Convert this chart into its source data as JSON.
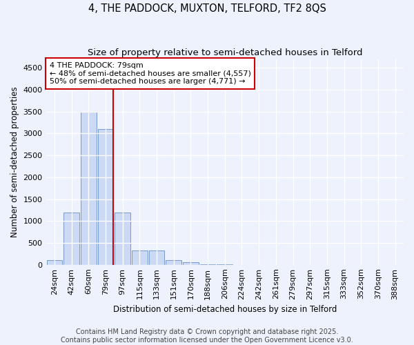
{
  "title1": "4, THE PADDOCK, MUXTON, TELFORD, TF2 8QS",
  "title2": "Size of property relative to semi-detached houses in Telford",
  "xlabel": "Distribution of semi-detached houses by size in Telford",
  "ylabel": "Number of semi-detached properties",
  "categories": [
    "24sqm",
    "42sqm",
    "60sqm",
    "79sqm",
    "97sqm",
    "115sqm",
    "133sqm",
    "151sqm",
    "170sqm",
    "188sqm",
    "206sqm",
    "224sqm",
    "242sqm",
    "261sqm",
    "279sqm",
    "297sqm",
    "315sqm",
    "333sqm",
    "352sqm",
    "370sqm",
    "388sqm"
  ],
  "values": [
    100,
    1200,
    3500,
    3100,
    1200,
    320,
    320,
    110,
    60,
    15,
    5,
    0,
    0,
    0,
    0,
    0,
    0,
    0,
    0,
    0,
    0
  ],
  "bar_color": "#ccd9f5",
  "bar_edge_color": "#7799cc",
  "property_index": 3,
  "annotation_text": "4 THE PADDOCK: 79sqm\n← 48% of semi-detached houses are smaller (4,557)\n50% of semi-detached houses are larger (4,771) →",
  "annotation_box_color": "#ffffff",
  "annotation_box_edge_color": "#cc0000",
  "vline_color": "#cc0000",
  "ylim": [
    0,
    4700
  ],
  "yticks": [
    0,
    500,
    1000,
    1500,
    2000,
    2500,
    3000,
    3500,
    4000,
    4500
  ],
  "footer": "Contains HM Land Registry data © Crown copyright and database right 2025.\nContains public sector information licensed under the Open Government Licence v3.0.",
  "bg_color": "#eef2fc",
  "plot_bg_color": "#eef2fc",
  "grid_color": "#ffffff",
  "title_fontsize": 10.5,
  "subtitle_fontsize": 9.5,
  "axis_label_fontsize": 8.5,
  "tick_fontsize": 8,
  "footer_fontsize": 7
}
